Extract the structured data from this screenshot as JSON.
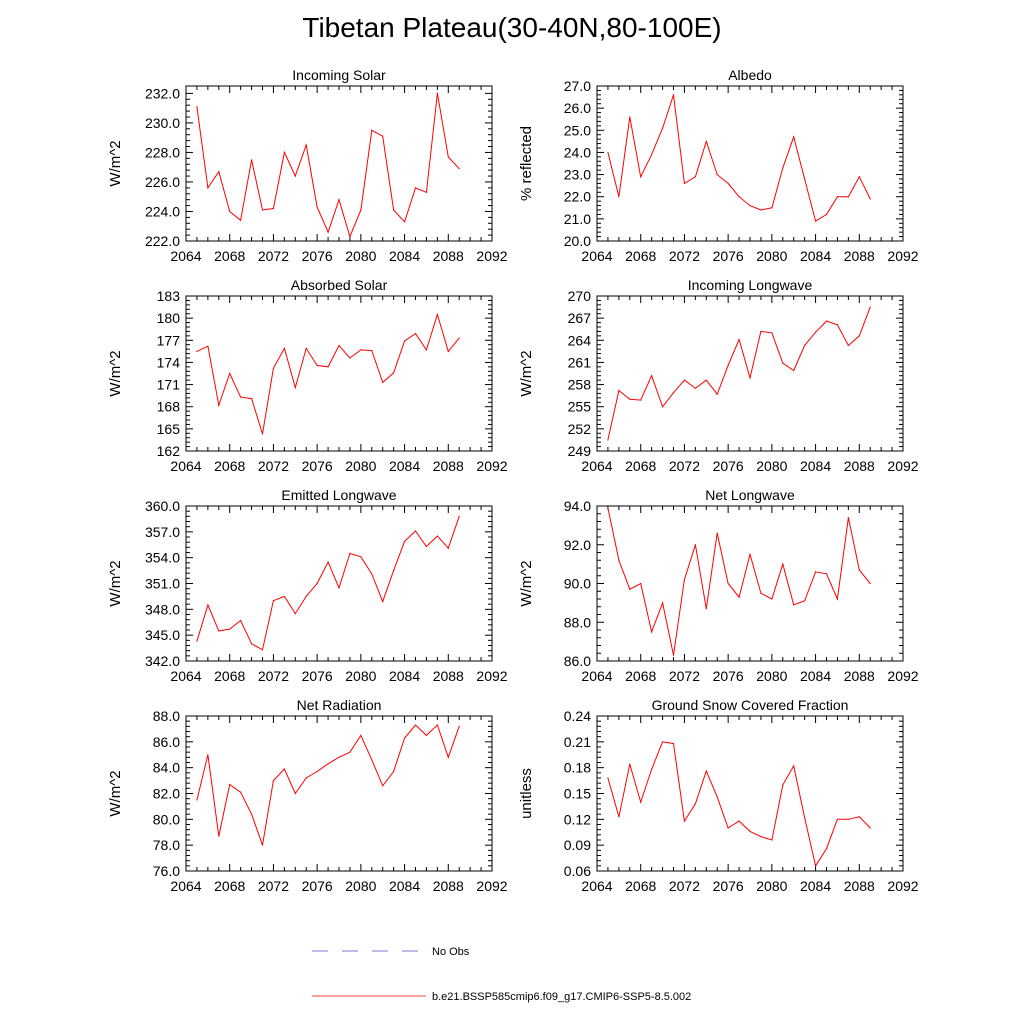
{
  "title": "Tibetan Plateau(30-40N,80-100E)",
  "legend": {
    "obs_label": "No Obs",
    "obs_color": "#5050c8",
    "model_label": "b.e21.BSSP585cmip6.f09_g17.CMIP6-SSP5-8.5.002",
    "model_color": "#ff0000"
  },
  "chart_data": [
    {
      "type": "line",
      "title": "Incoming Solar",
      "ylabel": "W/m^2",
      "xlim": [
        2064,
        2092
      ],
      "xticks": [
        2064,
        2068,
        2072,
        2076,
        2080,
        2084,
        2088,
        2092
      ],
      "ylim": [
        222,
        232.5
      ],
      "yticks": [
        222.0,
        224.0,
        226.0,
        228.0,
        230.0,
        232.0
      ],
      "ydec": 1,
      "x": [
        2065,
        2066,
        2067,
        2068,
        2069,
        2070,
        2071,
        2072,
        2073,
        2074,
        2075,
        2076,
        2077,
        2078,
        2079,
        2080,
        2081,
        2082,
        2083,
        2084,
        2085,
        2086,
        2087,
        2088,
        2089
      ],
      "values": [
        231.1,
        225.6,
        226.7,
        224.0,
        223.4,
        227.5,
        224.1,
        224.2,
        228.0,
        226.4,
        228.5,
        224.3,
        222.6,
        224.8,
        222.3,
        224.1,
        229.5,
        229.1,
        224.1,
        223.3,
        225.6,
        225.3,
        232.0,
        227.7,
        226.9
      ]
    },
    {
      "type": "line",
      "title": "Albedo",
      "ylabel": "% reflected",
      "xlim": [
        2064,
        2092
      ],
      "xticks": [
        2064,
        2068,
        2072,
        2076,
        2080,
        2084,
        2088,
        2092
      ],
      "ylim": [
        20,
        27
      ],
      "yticks": [
        20.0,
        21.0,
        22.0,
        23.0,
        24.0,
        25.0,
        26.0,
        27.0
      ],
      "ydec": 1,
      "x": [
        2065,
        2066,
        2067,
        2068,
        2069,
        2070,
        2071,
        2072,
        2073,
        2074,
        2075,
        2076,
        2077,
        2078,
        2079,
        2080,
        2081,
        2082,
        2083,
        2084,
        2085,
        2086,
        2087,
        2088,
        2089
      ],
      "values": [
        24.0,
        22.0,
        25.6,
        22.9,
        23.9,
        25.1,
        26.6,
        22.6,
        22.9,
        24.5,
        23.0,
        22.6,
        22.0,
        21.6,
        21.4,
        21.5,
        23.3,
        24.7,
        22.8,
        20.9,
        21.2,
        22.0,
        22.0,
        22.9,
        21.9
      ]
    },
    {
      "type": "line",
      "title": "Absorbed Solar",
      "ylabel": "W/m^2",
      "xlim": [
        2064,
        2092
      ],
      "xticks": [
        2064,
        2068,
        2072,
        2076,
        2080,
        2084,
        2088,
        2092
      ],
      "ylim": [
        162,
        183
      ],
      "yticks": [
        162,
        165,
        168,
        171,
        174,
        177,
        180,
        183
      ],
      "ydec": 0,
      "x": [
        2065,
        2066,
        2067,
        2068,
        2069,
        2070,
        2071,
        2072,
        2073,
        2074,
        2075,
        2076,
        2077,
        2078,
        2079,
        2080,
        2081,
        2082,
        2083,
        2084,
        2085,
        2086,
        2087,
        2088,
        2089
      ],
      "values": [
        175.5,
        176.2,
        168.2,
        172.5,
        169.3,
        169.1,
        164.3,
        173.2,
        175.9,
        170.6,
        175.9,
        173.6,
        173.4,
        176.3,
        174.6,
        175.7,
        175.6,
        171.3,
        172.6,
        176.9,
        177.9,
        175.7,
        180.5,
        175.5,
        177.3
      ]
    },
    {
      "type": "line",
      "title": "Incoming Longwave",
      "ylabel": "W/m^2",
      "xlim": [
        2064,
        2092
      ],
      "xticks": [
        2064,
        2068,
        2072,
        2076,
        2080,
        2084,
        2088,
        2092
      ],
      "ylim": [
        249,
        270
      ],
      "yticks": [
        249,
        252,
        255,
        258,
        261,
        264,
        267,
        270
      ],
      "ydec": 0,
      "x": [
        2065,
        2066,
        2067,
        2068,
        2069,
        2070,
        2071,
        2072,
        2073,
        2074,
        2075,
        2076,
        2077,
        2078,
        2079,
        2080,
        2081,
        2082,
        2083,
        2084,
        2085,
        2086,
        2087,
        2088,
        2089
      ],
      "values": [
        250.5,
        257.2,
        256.0,
        255.9,
        259.2,
        255.0,
        256.9,
        258.6,
        257.5,
        258.6,
        256.7,
        260.6,
        264.1,
        258.9,
        265.2,
        265.0,
        260.9,
        259.9,
        263.3,
        265.1,
        266.6,
        266.1,
        263.3,
        264.6,
        268.5
      ]
    },
    {
      "type": "line",
      "title": "Emitted Longwave",
      "ylabel": "W/m^2",
      "xlim": [
        2064,
        2092
      ],
      "xticks": [
        2064,
        2068,
        2072,
        2076,
        2080,
        2084,
        2088,
        2092
      ],
      "ylim": [
        342,
        360
      ],
      "yticks": [
        342.0,
        345.0,
        348.0,
        351.0,
        354.0,
        357.0,
        360.0
      ],
      "ydec": 1,
      "x": [
        2065,
        2066,
        2067,
        2068,
        2069,
        2070,
        2071,
        2072,
        2073,
        2074,
        2075,
        2076,
        2077,
        2078,
        2079,
        2080,
        2081,
        2082,
        2083,
        2084,
        2085,
        2086,
        2087,
        2088,
        2089
      ],
      "values": [
        344.3,
        348.5,
        345.5,
        345.7,
        346.7,
        344.0,
        343.3,
        349.0,
        349.5,
        347.5,
        349.5,
        351.0,
        353.5,
        350.5,
        354.5,
        354.1,
        352.1,
        348.9,
        352.5,
        355.9,
        357.1,
        355.3,
        356.5,
        355.1,
        358.8
      ]
    },
    {
      "type": "line",
      "title": "Net Longwave",
      "ylabel": "W/m^2",
      "xlim": [
        2064,
        2092
      ],
      "xticks": [
        2064,
        2068,
        2072,
        2076,
        2080,
        2084,
        2088,
        2092
      ],
      "ylim": [
        86,
        94
      ],
      "yticks": [
        86.0,
        88.0,
        90.0,
        92.0,
        94.0
      ],
      "ydec": 1,
      "x": [
        2065,
        2066,
        2067,
        2068,
        2069,
        2070,
        2071,
        2072,
        2073,
        2074,
        2075,
        2076,
        2077,
        2078,
        2079,
        2080,
        2081,
        2082,
        2083,
        2084,
        2085,
        2086,
        2087,
        2088,
        2089
      ],
      "values": [
        93.9,
        91.2,
        89.7,
        90.0,
        87.5,
        89.0,
        86.3,
        90.2,
        92.0,
        88.7,
        92.6,
        90.0,
        89.3,
        91.5,
        89.5,
        89.2,
        91.0,
        88.9,
        89.1,
        90.6,
        90.5,
        89.2,
        93.4,
        90.7,
        90.0
      ]
    },
    {
      "type": "line",
      "title": "Net Radiation",
      "ylabel": "W/m^2",
      "xlim": [
        2064,
        2092
      ],
      "xticks": [
        2064,
        2068,
        2072,
        2076,
        2080,
        2084,
        2088,
        2092
      ],
      "ylim": [
        76,
        88
      ],
      "yticks": [
        76.0,
        78.0,
        80.0,
        82.0,
        84.0,
        86.0,
        88.0
      ],
      "ydec": 1,
      "x": [
        2065,
        2066,
        2067,
        2068,
        2069,
        2070,
        2071,
        2072,
        2073,
        2074,
        2075,
        2076,
        2077,
        2078,
        2079,
        2080,
        2081,
        2082,
        2083,
        2084,
        2085,
        2086,
        2087,
        2088,
        2089
      ],
      "values": [
        81.5,
        85.0,
        78.7,
        82.7,
        82.1,
        80.4,
        78.0,
        83.0,
        83.9,
        82.0,
        83.2,
        83.7,
        84.3,
        84.8,
        85.2,
        86.5,
        84.6,
        82.6,
        83.7,
        86.3,
        87.3,
        86.5,
        87.3,
        84.8,
        87.2
      ]
    },
    {
      "type": "line",
      "title": "Ground Snow Covered Fraction",
      "ylabel": "unitless",
      "xlim": [
        2064,
        2092
      ],
      "xticks": [
        2064,
        2068,
        2072,
        2076,
        2080,
        2084,
        2088,
        2092
      ],
      "ylim": [
        0.06,
        0.24
      ],
      "yticks": [
        0.06,
        0.09,
        0.12,
        0.15,
        0.18,
        0.21,
        0.24
      ],
      "ydec": 2,
      "x": [
        2065,
        2066,
        2067,
        2068,
        2069,
        2070,
        2071,
        2072,
        2073,
        2074,
        2075,
        2076,
        2077,
        2078,
        2079,
        2080,
        2081,
        2082,
        2083,
        2084,
        2085,
        2086,
        2087,
        2088,
        2089
      ],
      "values": [
        0.168,
        0.123,
        0.184,
        0.14,
        0.178,
        0.21,
        0.208,
        0.118,
        0.138,
        0.176,
        0.146,
        0.11,
        0.118,
        0.106,
        0.1,
        0.096,
        0.16,
        0.182,
        0.122,
        0.066,
        0.086,
        0.12,
        0.12,
        0.123,
        0.11
      ]
    }
  ]
}
